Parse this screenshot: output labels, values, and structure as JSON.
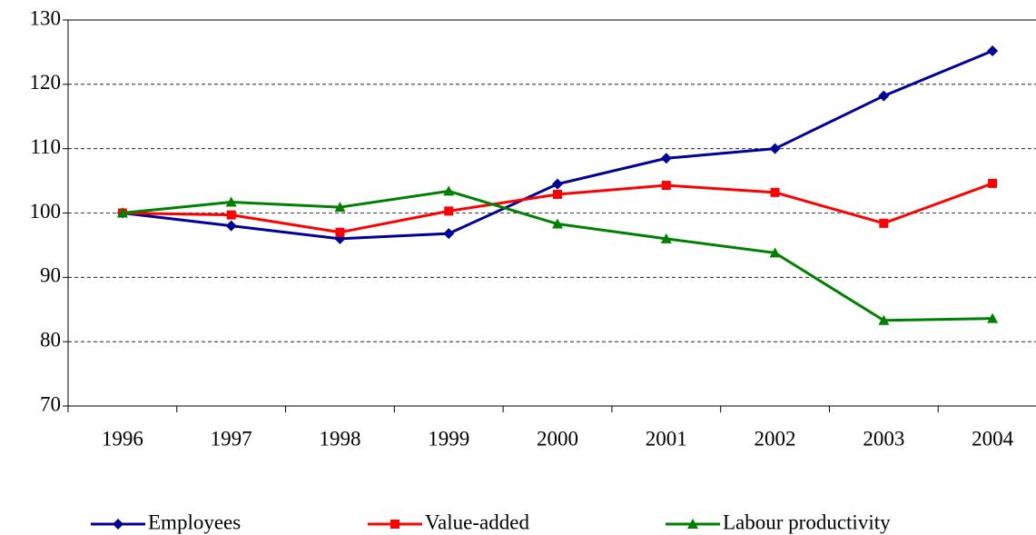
{
  "chart_data": {
    "type": "line",
    "categories": [
      "1996",
      "1997",
      "1998",
      "1999",
      "2000",
      "2001",
      "2002",
      "2003",
      "2004"
    ],
    "series": [
      {
        "name": "Employees",
        "color": "#000099",
        "marker": "diamond",
        "values": [
          100,
          98,
          96,
          96.8,
          104.5,
          108.5,
          110,
          118.2,
          125.2
        ]
      },
      {
        "name": "Value-added",
        "color": "#ff0000",
        "marker": "square",
        "values": [
          100,
          99.7,
          97,
          100.3,
          102.9,
          104.3,
          103.2,
          98.4,
          104.6
        ]
      },
      {
        "name": "Labour productivity",
        "color": "#008000",
        "marker": "triangle",
        "values": [
          100,
          101.7,
          100.9,
          103.4,
          98.3,
          96,
          93.8,
          83.3,
          83.6
        ]
      }
    ],
    "ylim": [
      70,
      130
    ],
    "yticks": [
      70,
      80,
      90,
      100,
      110,
      120,
      130
    ],
    "grid": true,
    "legend": "bottom"
  }
}
